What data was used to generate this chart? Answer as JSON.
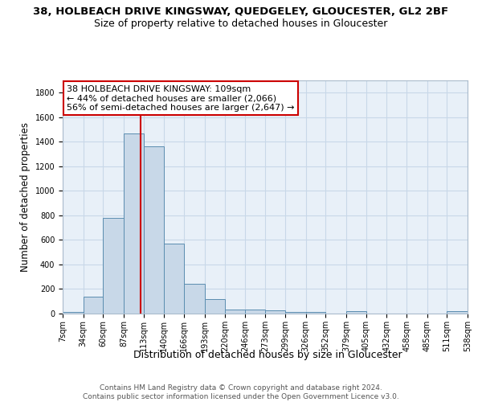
{
  "title": "38, HOLBEACH DRIVE KINGSWAY, QUEDGELEY, GLOUCESTER, GL2 2BF",
  "subtitle": "Size of property relative to detached houses in Gloucester",
  "xlabel": "Distribution of detached houses by size in Gloucester",
  "ylabel": "Number of detached properties",
  "bin_edges": [
    7,
    34,
    60,
    87,
    113,
    140,
    166,
    193,
    220,
    246,
    273,
    299,
    326,
    352,
    379,
    405,
    432,
    458,
    485,
    511,
    538
  ],
  "bar_heights": [
    15,
    135,
    780,
    1470,
    1360,
    570,
    245,
    115,
    35,
    30,
    25,
    15,
    15,
    0,
    20,
    0,
    0,
    0,
    0,
    20
  ],
  "bar_color": "#c8d8e8",
  "bar_edgecolor": "#5b8db0",
  "bar_linewidth": 0.7,
  "vline_x": 109,
  "vline_color": "#cc0000",
  "vline_linewidth": 1.5,
  "annotation_text": "38 HOLBEACH DRIVE KINGSWAY: 109sqm\n← 44% of detached houses are smaller (2,066)\n56% of semi-detached houses are larger (2,647) →",
  "annotation_box_edgecolor": "#cc0000",
  "annotation_box_facecolor": "#ffffff",
  "ylim": [
    0,
    1900
  ],
  "yticks": [
    0,
    200,
    400,
    600,
    800,
    1000,
    1200,
    1400,
    1600,
    1800
  ],
  "grid_color": "#c8d8e8",
  "background_color": "#e8f0f8",
  "footer_text": "Contains HM Land Registry data © Crown copyright and database right 2024.\nContains public sector information licensed under the Open Government Licence v3.0.",
  "title_fontsize": 9.5,
  "subtitle_fontsize": 9,
  "tick_fontsize": 7,
  "annotation_fontsize": 8,
  "ylabel_fontsize": 8.5,
  "xlabel_fontsize": 9,
  "footer_fontsize": 6.5
}
